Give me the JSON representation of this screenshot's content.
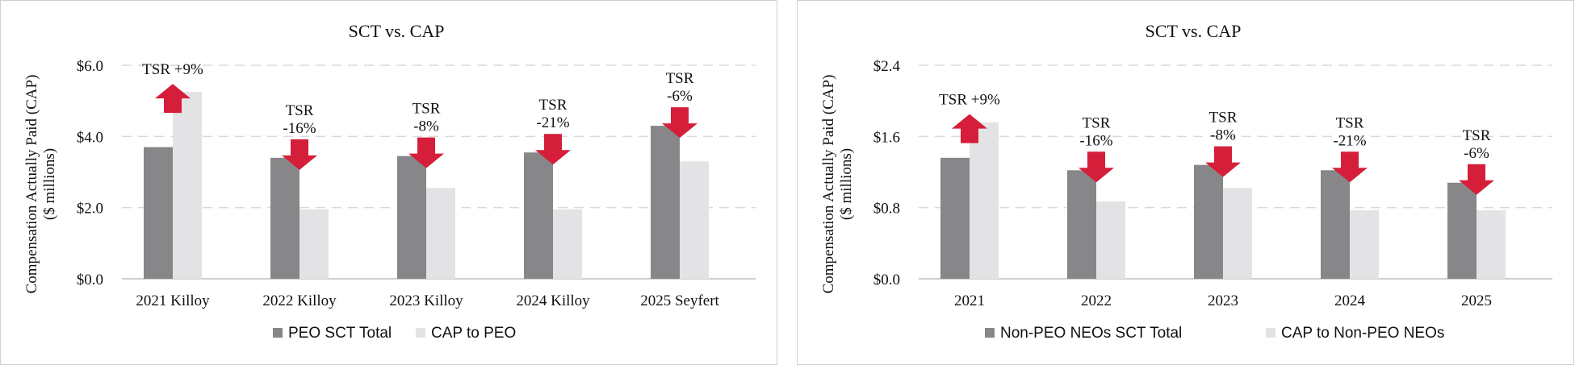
{
  "colors": {
    "sct": "#87878a",
    "cap": "#e3e3e5",
    "arrow": "#d41e3a",
    "grid": "#d9d9d9"
  },
  "chart_data": [
    {
      "type": "bar",
      "title": "SCT vs. CAP",
      "ylabel": "Compensation Actually Paid (CAP)",
      "ylabel_sub": "($ millions)",
      "ylim": [
        0,
        6
      ],
      "yticks": [
        0,
        2,
        4,
        6
      ],
      "ytick_labels": [
        "$0.0",
        "$2.0",
        "$4.0",
        "$6.0"
      ],
      "grid": true,
      "legend_position": "bottom",
      "categories": [
        "2021 Killoy",
        "2022 Killoy",
        "2023 Killoy",
        "2024 Killoy",
        "2025 Seyfert"
      ],
      "series": [
        {
          "name": "PEO SCT Total",
          "values": [
            3.7,
            3.4,
            3.45,
            3.55,
            4.3
          ]
        },
        {
          "name": "CAP to PEO",
          "values": [
            5.25,
            1.95,
            2.55,
            1.95,
            3.3
          ]
        }
      ],
      "annotations": [
        {
          "direction": "up",
          "lines": [
            "TSR +9%"
          ]
        },
        {
          "direction": "down",
          "lines": [
            "TSR",
            "-16%"
          ]
        },
        {
          "direction": "down",
          "lines": [
            "TSR",
            "-8%"
          ]
        },
        {
          "direction": "down",
          "lines": [
            "TSR",
            "-21%"
          ]
        },
        {
          "direction": "down",
          "lines": [
            "TSR",
            "-6%"
          ]
        }
      ]
    },
    {
      "type": "bar",
      "title": "SCT vs. CAP",
      "ylabel": "Compensation Actually Paid (CAP)",
      "ylabel_sub": "($ millions)",
      "ylim": [
        0,
        2.4
      ],
      "yticks": [
        0,
        0.8,
        1.6,
        2.4
      ],
      "ytick_labels": [
        "$0.0",
        "$0.8",
        "$1.6",
        "$2.4"
      ],
      "grid": true,
      "legend_position": "bottom",
      "categories": [
        "2021",
        "2022",
        "2023",
        "2024",
        "2025"
      ],
      "series": [
        {
          "name": "Non-PEO NEOs SCT Total",
          "values": [
            1.36,
            1.22,
            1.28,
            1.22,
            1.08
          ]
        },
        {
          "name": "CAP to Non-PEO NEOs",
          "values": [
            1.76,
            0.87,
            1.02,
            0.77,
            0.77
          ]
        }
      ],
      "annotations": [
        {
          "direction": "up",
          "lines": [
            "TSR +9%"
          ]
        },
        {
          "direction": "down",
          "lines": [
            "TSR",
            "-16%"
          ]
        },
        {
          "direction": "down",
          "lines": [
            "TSR",
            "-8%"
          ]
        },
        {
          "direction": "down",
          "lines": [
            "TSR",
            "-21%"
          ]
        },
        {
          "direction": "down",
          "lines": [
            "TSR",
            "-6%"
          ]
        }
      ]
    }
  ]
}
